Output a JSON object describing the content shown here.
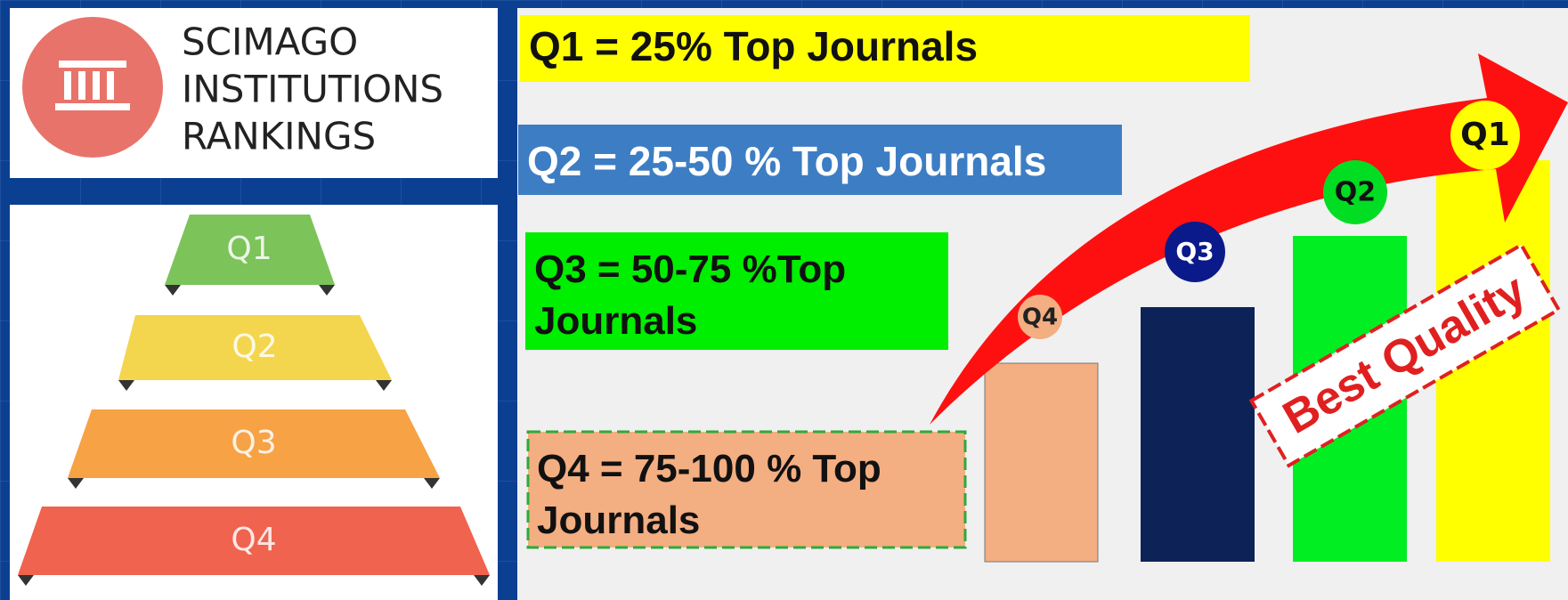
{
  "logo": {
    "lines": [
      "SCIMAGO",
      "INSTITUTIONS",
      "RANKINGS"
    ]
  },
  "pyramid": {
    "levels": [
      "Q1",
      "Q2",
      "Q3",
      "Q4"
    ]
  },
  "definitions": [
    "Q1 = 25% Top Journals",
    "Q2 = 25-50 % Top Journals",
    "Q3 = 50-75 %Top Journals",
    "Q4 = 75-100 % Top Journals"
  ],
  "bars": {
    "labels": [
      "Q4",
      "Q3",
      "Q2",
      "Q1"
    ]
  },
  "stamp": "Best Quality"
}
